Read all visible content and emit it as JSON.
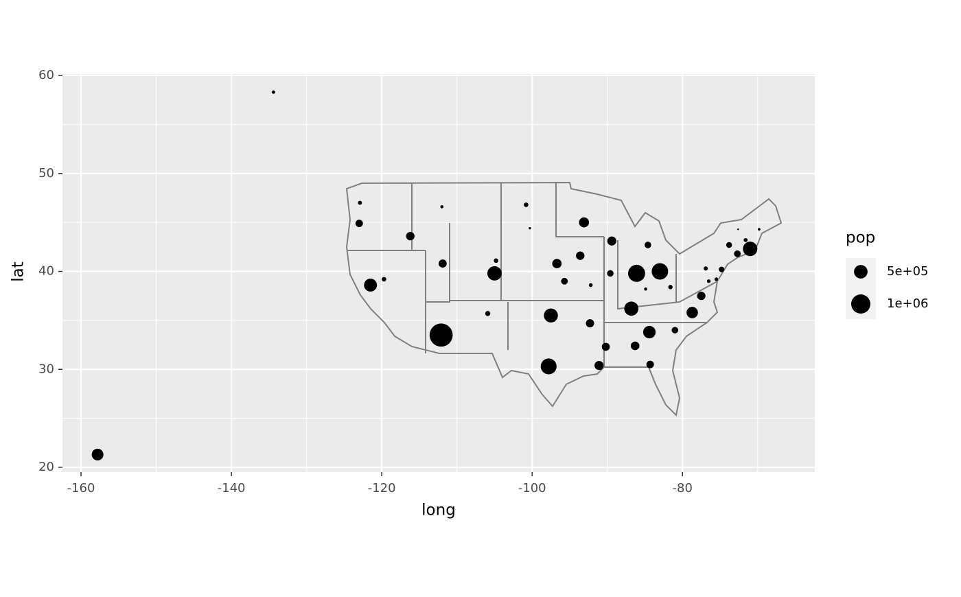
{
  "chart_data": {
    "type": "scatter",
    "x_label": "long",
    "y_label": "lat",
    "xlim": [
      -162.47,
      -62.4
    ],
    "ylim": [
      19.51,
      60.14
    ],
    "xticks": [
      -160,
      -140,
      -120,
      -100,
      -80
    ],
    "yticks": [
      20,
      30,
      40,
      50,
      60
    ],
    "x_minor_breaks": [
      -150,
      -130,
      -110,
      -90,
      -70
    ],
    "y_minor_breaks": [
      25,
      35,
      45,
      55
    ],
    "grid": true,
    "color": "#000000",
    "x": [
      -157.8,
      -134.4,
      -122.9,
      -123.0,
      -116.2,
      -121.5,
      -119.7,
      -112.0,
      -111.9,
      -112.1,
      -104.8,
      -105.0,
      -105.9,
      -100.8,
      -100.3,
      -96.7,
      -95.7,
      -97.5,
      -97.8,
      -93.1,
      -93.6,
      -92.2,
      -92.3,
      -91.1,
      -90.2,
      -89.4,
      -89.6,
      -86.8,
      -86.1,
      -84.9,
      -84.6,
      -83.0,
      -86.3,
      -84.4,
      -84.3,
      -81.0,
      -78.7,
      -81.6,
      -77.5,
      -76.9,
      -76.5,
      -75.5,
      -74.8,
      -73.8,
      -72.7,
      -71.0,
      -71.6,
      -72.6,
      -69.8
    ],
    "y": [
      21.3,
      58.3,
      47.0,
      44.9,
      43.6,
      38.6,
      39.2,
      46.6,
      40.8,
      33.5,
      41.1,
      39.8,
      35.7,
      46.8,
      44.4,
      40.8,
      39.0,
      35.5,
      30.3,
      45.0,
      41.6,
      38.6,
      34.7,
      30.4,
      32.3,
      43.1,
      39.8,
      36.2,
      39.8,
      38.2,
      42.7,
      40.0,
      32.4,
      33.8,
      30.5,
      34.0,
      35.8,
      38.4,
      37.5,
      40.3,
      39.0,
      39.2,
      40.2,
      42.7,
      41.8,
      42.3,
      43.2,
      44.3,
      44.3
    ],
    "size": [
      371657,
      31187,
      44000,
      151000,
      193000,
      455000,
      57000,
      28000,
      179000,
      1450000,
      54000,
      556000,
      70000,
      57000,
      14000,
      239000,
      122000,
      532000,
      682000,
      273000,
      195000,
      40000,
      184000,
      221000,
      174000,
      221000,
      115000,
      546000,
      788000,
      27000,
      117000,
      733000,
      201000,
      424000,
      155000,
      117000,
      350000,
      51000,
      190000,
      47000,
      36000,
      35000,
      84000,
      93000,
      124000,
      567000,
      42000,
      8000,
      18000
    ],
    "size_legend": {
      "title": "pop",
      "values": [
        {
          "value": 500000,
          "label": "5e+05"
        },
        {
          "value": 1000000,
          "label": "1e+06"
        }
      ]
    }
  }
}
